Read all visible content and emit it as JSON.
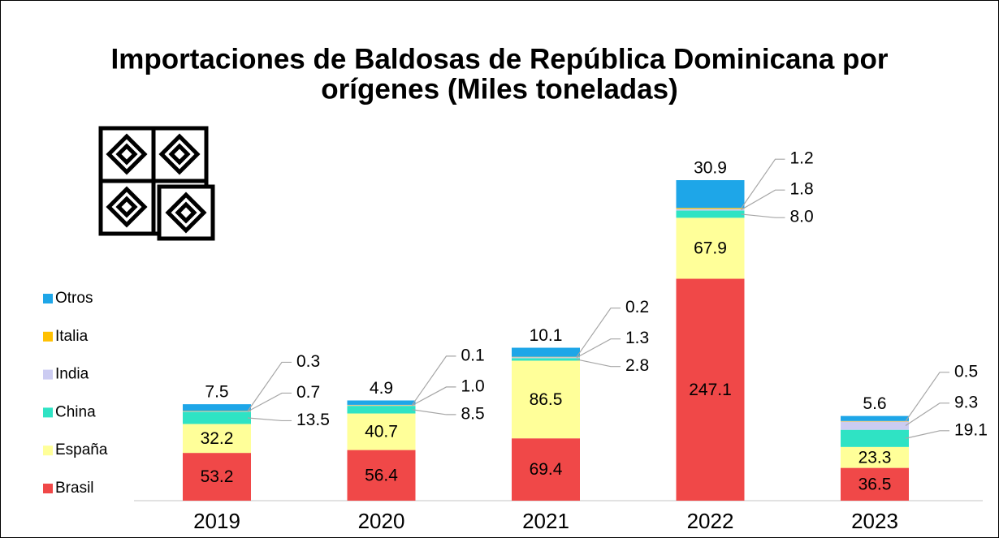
{
  "chart_data": {
    "type": "stacked_bar",
    "title_lines": [
      "Importaciones de Baldosas de República Dominicana por",
      "orígenes (Miles toneladas)"
    ],
    "categories": [
      "2019",
      "2020",
      "2021",
      "2022",
      "2023"
    ],
    "series": [
      {
        "name": "Brasil",
        "color": "#f04848",
        "values": [
          53.2,
          56.4,
          69.4,
          247.1,
          36.5
        ],
        "value_labels": [
          "53.2",
          "56.4",
          "69.4",
          "247.1",
          "36.5"
        ]
      },
      {
        "name": "España",
        "color": "#ffff99",
        "values": [
          32.2,
          40.7,
          86.5,
          67.9,
          23.3
        ],
        "value_labels": [
          "32.2",
          "40.7",
          "86.5",
          "67.9",
          "23.3"
        ]
      },
      {
        "name": "China",
        "color": "#2fe3c4",
        "values": [
          13.5,
          8.5,
          2.8,
          8.0,
          19.1
        ],
        "value_labels": [
          "13.5",
          "8.5",
          "2.8",
          "8.0",
          "19.1"
        ]
      },
      {
        "name": "India",
        "color": "#ccccf2",
        "values": [
          0.7,
          1.0,
          1.3,
          1.8,
          9.3
        ],
        "value_labels": [
          "0.7",
          "1.0",
          "1.3",
          "1.8",
          "9.3"
        ]
      },
      {
        "name": "Italia",
        "color": "#ffc000",
        "values": [
          0.3,
          0.1,
          0.2,
          1.2,
          0.5
        ],
        "value_labels": [
          "0.3",
          "0.1",
          "0.2",
          "1.2",
          "0.5"
        ]
      },
      {
        "name": "Otros",
        "color": "#1ea6e8",
        "values": [
          7.5,
          4.9,
          10.1,
          30.9,
          5.6
        ],
        "value_labels": [
          "7.5",
          "4.9",
          "10.1",
          "30.9",
          "5.6"
        ]
      }
    ]
  }
}
